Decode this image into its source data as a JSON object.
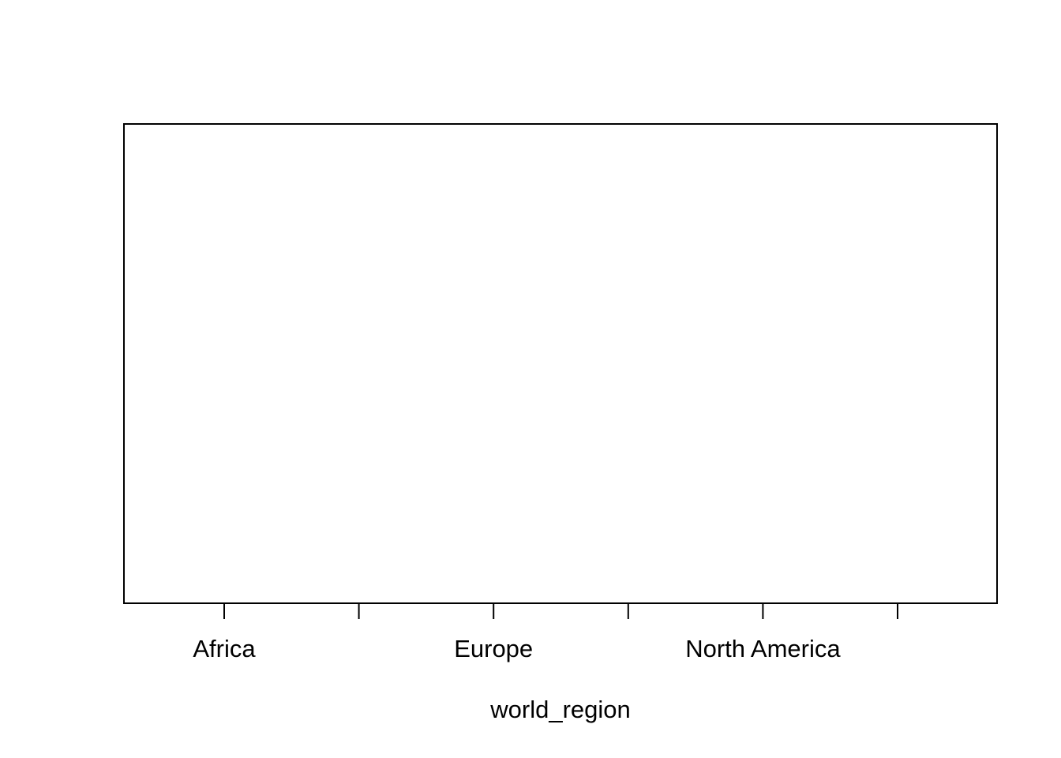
{
  "chart_data": {
    "type": "boxplot",
    "xlabel": "world_region",
    "categories": [
      "Africa",
      null,
      "Europe",
      null,
      "North America",
      null
    ]
  }
}
